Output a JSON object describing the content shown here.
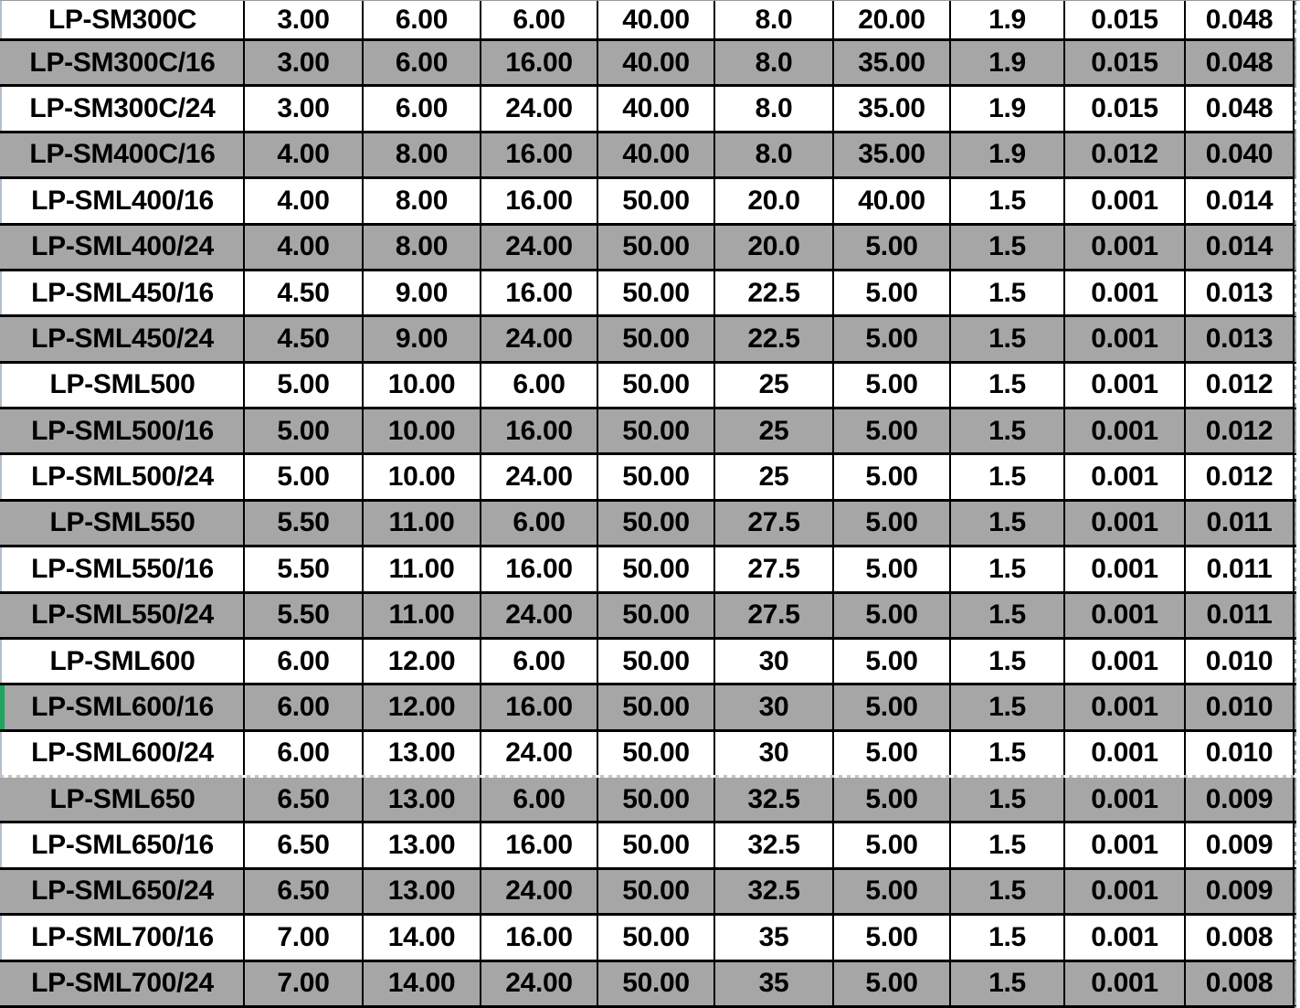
{
  "table": {
    "rows": [
      [
        "LP-SM300C",
        "3.00",
        "6.00",
        "6.00",
        "40.00",
        "8.0",
        "20.00",
        "1.9",
        "0.015",
        "0.048"
      ],
      [
        "LP-SM300C/16",
        "3.00",
        "6.00",
        "16.00",
        "40.00",
        "8.0",
        "35.00",
        "1.9",
        "0.015",
        "0.048"
      ],
      [
        "LP-SM300C/24",
        "3.00",
        "6.00",
        "24.00",
        "40.00",
        "8.0",
        "35.00",
        "1.9",
        "0.015",
        "0.048"
      ],
      [
        "LP-SM400C/16",
        "4.00",
        "8.00",
        "16.00",
        "40.00",
        "8.0",
        "35.00",
        "1.9",
        "0.012",
        "0.040"
      ],
      [
        "LP-SML400/16",
        "4.00",
        "8.00",
        "16.00",
        "50.00",
        "20.0",
        "40.00",
        "1.5",
        "0.001",
        "0.014"
      ],
      [
        "LP-SML400/24",
        "4.00",
        "8.00",
        "24.00",
        "50.00",
        "20.0",
        "5.00",
        "1.5",
        "0.001",
        "0.014"
      ],
      [
        "LP-SML450/16",
        "4.50",
        "9.00",
        "16.00",
        "50.00",
        "22.5",
        "5.00",
        "1.5",
        "0.001",
        "0.013"
      ],
      [
        "LP-SML450/24",
        "4.50",
        "9.00",
        "24.00",
        "50.00",
        "22.5",
        "5.00",
        "1.5",
        "0.001",
        "0.013"
      ],
      [
        "LP-SML500",
        "5.00",
        "10.00",
        "6.00",
        "50.00",
        "25",
        "5.00",
        "1.5",
        "0.001",
        "0.012"
      ],
      [
        "LP-SML500/16",
        "5.00",
        "10.00",
        "16.00",
        "50.00",
        "25",
        "5.00",
        "1.5",
        "0.001",
        "0.012"
      ],
      [
        "LP-SML500/24",
        "5.00",
        "10.00",
        "24.00",
        "50.00",
        "25",
        "5.00",
        "1.5",
        "0.001",
        "0.012"
      ],
      [
        "LP-SML550",
        "5.50",
        "11.00",
        "6.00",
        "50.00",
        "27.5",
        "5.00",
        "1.5",
        "0.001",
        "0.011"
      ],
      [
        "LP-SML550/16",
        "5.50",
        "11.00",
        "16.00",
        "50.00",
        "27.5",
        "5.00",
        "1.5",
        "0.001",
        "0.011"
      ],
      [
        "LP-SML550/24",
        "5.50",
        "11.00",
        "24.00",
        "50.00",
        "27.5",
        "5.00",
        "1.5",
        "0.001",
        "0.011"
      ],
      [
        "LP-SML600",
        "6.00",
        "12.00",
        "6.00",
        "50.00",
        "30",
        "5.00",
        "1.5",
        "0.001",
        "0.010"
      ],
      [
        "LP-SML600/16",
        "6.00",
        "12.00",
        "16.00",
        "50.00",
        "30",
        "5.00",
        "1.5",
        "0.001",
        "0.010"
      ],
      [
        "LP-SML600/24",
        "6.00",
        "13.00",
        "24.00",
        "50.00",
        "30",
        "5.00",
        "1.5",
        "0.001",
        "0.010"
      ],
      [
        "LP-SML650",
        "6.50",
        "13.00",
        "6.00",
        "50.00",
        "32.5",
        "5.00",
        "1.5",
        "0.001",
        "0.009"
      ],
      [
        "LP-SML650/16",
        "6.50",
        "13.00",
        "16.00",
        "50.00",
        "32.5",
        "5.00",
        "1.5",
        "0.001",
        "0.009"
      ],
      [
        "LP-SML650/24",
        "6.50",
        "13.00",
        "24.00",
        "50.00",
        "32.5",
        "5.00",
        "1.5",
        "0.001",
        "0.009"
      ],
      [
        "LP-SML700/16",
        "7.00",
        "14.00",
        "16.00",
        "50.00",
        "35",
        "5.00",
        "1.5",
        "0.001",
        "0.008"
      ],
      [
        "LP-SML700/24",
        "7.00",
        "14.00",
        "24.00",
        "50.00",
        "35",
        "5.00",
        "1.5",
        "0.001",
        "0.008"
      ]
    ]
  },
  "annotations": {
    "green_marker_row": 15,
    "page_break_after_row": 16,
    "right_page_break_line": true,
    "row_striping": "odd-index rows shaded gray"
  },
  "colors": {
    "row_gray": "#a6a6a6",
    "row_white": "#ffffff",
    "grid_border": "#000000",
    "green_marker": "#21a35f",
    "page_break_dash": "#8f969e"
  }
}
